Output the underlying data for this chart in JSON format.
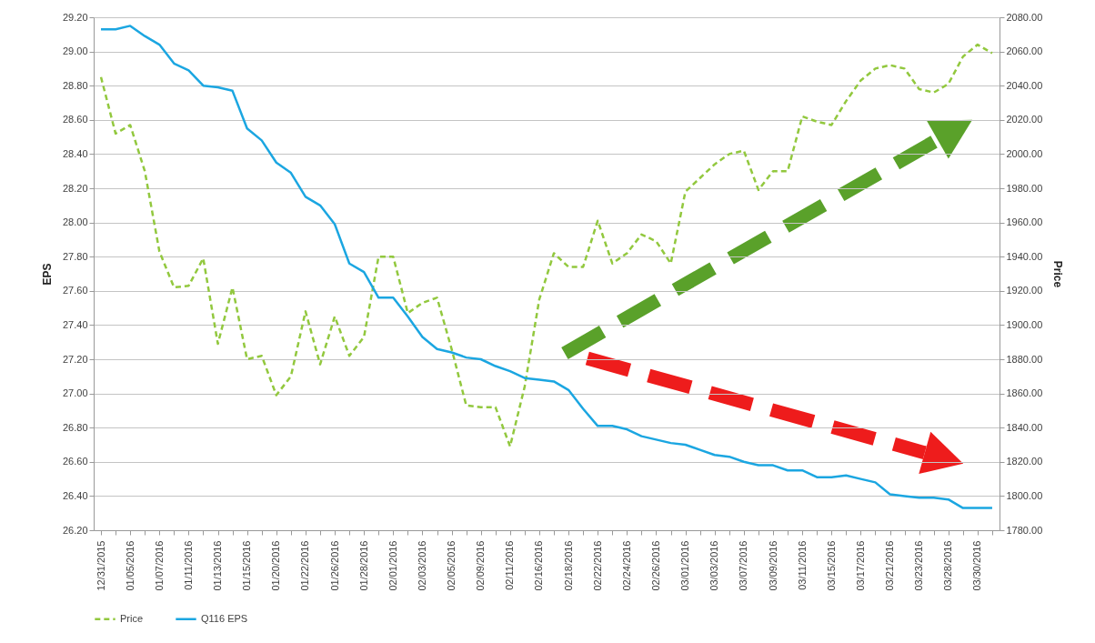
{
  "chart_data": {
    "type": "line",
    "xlabel": null,
    "ylabel": "EPS",
    "y2label": "Price",
    "categories": [
      "12/31/2015",
      null,
      "01/05/2016",
      null,
      "01/07/2016",
      null,
      "01/11/2016",
      null,
      "01/13/2016",
      null,
      "01/15/2016",
      null,
      "01/20/2016",
      null,
      "01/22/2016",
      null,
      "01/26/2016",
      null,
      "01/28/2016",
      null,
      "02/01/2016",
      null,
      "02/03/2016",
      null,
      "02/05/2016",
      null,
      "02/09/2016",
      null,
      "02/11/2016",
      null,
      "02/16/2016",
      null,
      "02/18/2016",
      null,
      "02/22/2016",
      null,
      "02/24/2016",
      null,
      "02/26/2016",
      null,
      "03/01/2016",
      null,
      "03/03/2016",
      null,
      "03/07/2016",
      null,
      "03/09/2016",
      null,
      "03/11/2016",
      null,
      "03/15/2016",
      null,
      "03/17/2016",
      null,
      "03/21/2016",
      null,
      "03/23/2016",
      null,
      "03/28/2016",
      null,
      "03/30/2016",
      null
    ],
    "series": [
      {
        "name": "Price",
        "color": "#92c83e",
        "axis": "y2",
        "line_style": "dashed",
        "values": [
          2045,
          2012,
          2017,
          1990,
          1943,
          1922,
          1923,
          1939,
          1889,
          1922,
          1880,
          1882,
          1859,
          1870,
          1908,
          1877,
          1905,
          1882,
          1893,
          1940,
          1940,
          1907,
          1913,
          1916,
          1886,
          1853,
          1852,
          1852,
          1829,
          1864,
          1915,
          1942,
          1934,
          1934,
          1961,
          1936,
          1942,
          1953,
          1949,
          1936,
          1978,
          1986,
          1994,
          2000,
          2002,
          1979,
          1990,
          1990,
          2022,
          2019,
          2017,
          2031,
          2043,
          2050,
          2052,
          2050,
          2038,
          2036,
          2041,
          2057,
          2064,
          2059
        ]
      },
      {
        "name": "Q116 EPS",
        "color": "#1ba6e1",
        "line_style": "solid",
        "values": [
          29.13,
          29.13,
          29.15,
          29.09,
          29.04,
          28.93,
          28.89,
          28.8,
          28.79,
          28.77,
          28.55,
          28.48,
          28.35,
          28.29,
          28.15,
          28.1,
          27.99,
          27.76,
          27.71,
          27.56,
          27.56,
          27.45,
          27.33,
          27.26,
          27.24,
          27.21,
          27.2,
          27.16,
          27.13,
          27.09,
          27.08,
          27.07,
          27.02,
          26.91,
          26.81,
          26.81,
          26.79,
          26.75,
          26.73,
          26.71,
          26.7,
          26.67,
          26.64,
          26.63,
          26.6,
          26.58,
          26.58,
          26.55,
          26.55,
          26.51,
          26.51,
          26.52,
          26.5,
          26.48,
          26.41,
          26.4,
          26.39,
          26.39,
          26.38,
          26.33,
          26.33,
          26.33
        ]
      }
    ],
    "ylim": [
      26.2,
      29.2
    ],
    "yticks": [
      {
        "value": 26.2,
        "label": "26.20"
      },
      {
        "value": 26.4,
        "label": "26.40"
      },
      {
        "value": 26.6,
        "label": "26.60"
      },
      {
        "value": 26.8,
        "label": "26.80"
      },
      {
        "value": 27.0,
        "label": "27.00"
      },
      {
        "value": 27.2,
        "label": "27.20"
      },
      {
        "value": 27.4,
        "label": "27.40"
      },
      {
        "value": 27.6,
        "label": "27.60"
      },
      {
        "value": 27.8,
        "label": "27.80"
      },
      {
        "value": 28.0,
        "label": "28.00"
      },
      {
        "value": 28.2,
        "label": "28.20"
      },
      {
        "value": 28.4,
        "label": "28.40"
      },
      {
        "value": 28.6,
        "label": "28.60"
      },
      {
        "value": 28.8,
        "label": "28.80"
      },
      {
        "value": 29.0,
        "label": "29.00"
      },
      {
        "value": 29.2,
        "label": "29.20"
      }
    ],
    "y2lim": [
      1780,
      2080
    ],
    "y2ticks": [
      {
        "value": 1780,
        "label": "1780.00"
      },
      {
        "value": 1800,
        "label": "1800.00"
      },
      {
        "value": 1820,
        "label": "1820.00"
      },
      {
        "value": 1840,
        "label": "1840.00"
      },
      {
        "value": 1860,
        "label": "1860.00"
      },
      {
        "value": 1880,
        "label": "1880.00"
      },
      {
        "value": 1900,
        "label": "1900.00"
      },
      {
        "value": 1920,
        "label": "1920.00"
      },
      {
        "value": 1940,
        "label": "1940.00"
      },
      {
        "value": 1960,
        "label": "1960.00"
      },
      {
        "value": 1980,
        "label": "1980.00"
      },
      {
        "value": 2000,
        "label": "2000.00"
      },
      {
        "value": 2020,
        "label": "2020.00"
      },
      {
        "value": 2040,
        "label": "2040.00"
      },
      {
        "value": 2060,
        "label": "2060.00"
      },
      {
        "value": 2080,
        "label": "2080.00"
      }
    ],
    "grid": "y",
    "legend": "bottom",
    "marker": "none"
  }
}
